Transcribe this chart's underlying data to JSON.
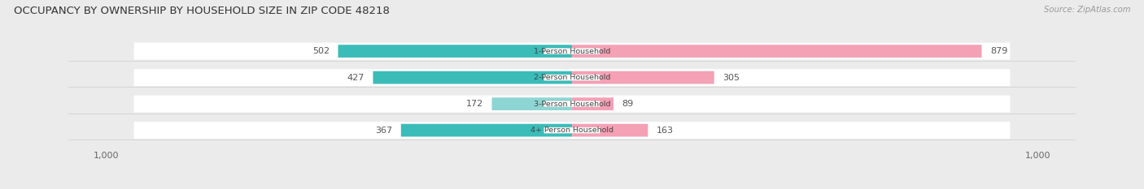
{
  "title": "OCCUPANCY BY OWNERSHIP BY HOUSEHOLD SIZE IN ZIP CODE 48218",
  "source": "Source: ZipAtlas.com",
  "categories": [
    "1-Person Household",
    "2-Person Household",
    "3-Person Household",
    "4+ Person Household"
  ],
  "owner_values": [
    502,
    427,
    172,
    367
  ],
  "renter_values": [
    879,
    305,
    89,
    163
  ],
  "owner_colors": [
    "#3bbcb8",
    "#3bbcb8",
    "#8dd5d3",
    "#3bbcb8"
  ],
  "renter_colors": [
    "#f4a0b5",
    "#f4a0b5",
    "#f4a0b5",
    "#f4a0b5"
  ],
  "axis_max": 1000,
  "bg_color": "#ebebeb",
  "bar_bg": "#f8f8f8",
  "row_bg": "#ffffff",
  "title_fontsize": 9.5,
  "label_fontsize": 8.0,
  "tick_fontsize": 8.0,
  "legend_fontsize": 8.0,
  "cat_fontsize": 6.8
}
